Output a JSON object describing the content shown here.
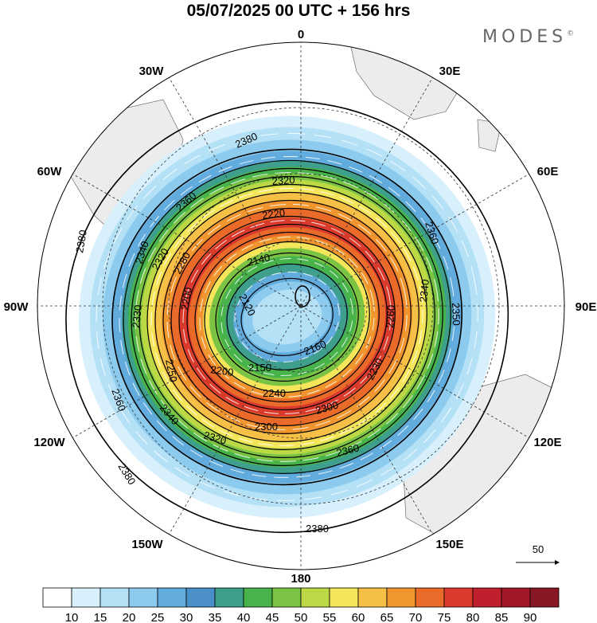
{
  "title": "05/07/2025  00 UTC  + 156 hrs",
  "brand": "MODES",
  "brand_mark": "©",
  "lon_labels": [
    {
      "text": "0",
      "lon": 0
    },
    {
      "text": "30E",
      "lon": 30
    },
    {
      "text": "60E",
      "lon": 60
    },
    {
      "text": "90E",
      "lon": 90
    },
    {
      "text": "120E",
      "lon": 120
    },
    {
      "text": "150E",
      "lon": 150
    },
    {
      "text": "180",
      "lon": 180
    },
    {
      "text": "150W",
      "lon": -150
    },
    {
      "text": "120W",
      "lon": -120
    },
    {
      "text": "90W",
      "lon": -90
    },
    {
      "text": "60W",
      "lon": -60
    },
    {
      "text": "30W",
      "lon": -30
    }
  ],
  "contour_labels": [
    "2380",
    "2380",
    "2380",
    "2380",
    "2360",
    "2360",
    "2360",
    "2360",
    "2350",
    "2340",
    "2340",
    "2340",
    "2330",
    "2320",
    "2320",
    "2320",
    "2300",
    "2300",
    "2280",
    "2260",
    "2250",
    "2240",
    "2230",
    "2220",
    "2200",
    "2200",
    "2160",
    "2150",
    "2140",
    "2120"
  ],
  "colorbar": {
    "ticks": [
      "10",
      "15",
      "20",
      "25",
      "30",
      "35",
      "40",
      "45",
      "50",
      "55",
      "60",
      "65",
      "70",
      "75",
      "80",
      "85",
      "90"
    ],
    "colors": [
      "#ffffff",
      "#d7f0fc",
      "#b4e1f6",
      "#8ccbee",
      "#62acdd",
      "#4b8fc8",
      "#3ea08c",
      "#47b34a",
      "#7bc443",
      "#bcd945",
      "#f5e55a",
      "#f6bf45",
      "#f1962f",
      "#ea6a2a",
      "#d93a2c",
      "#c01f2d",
      "#a11729",
      "#871725"
    ]
  },
  "vector_legend": "50"
}
